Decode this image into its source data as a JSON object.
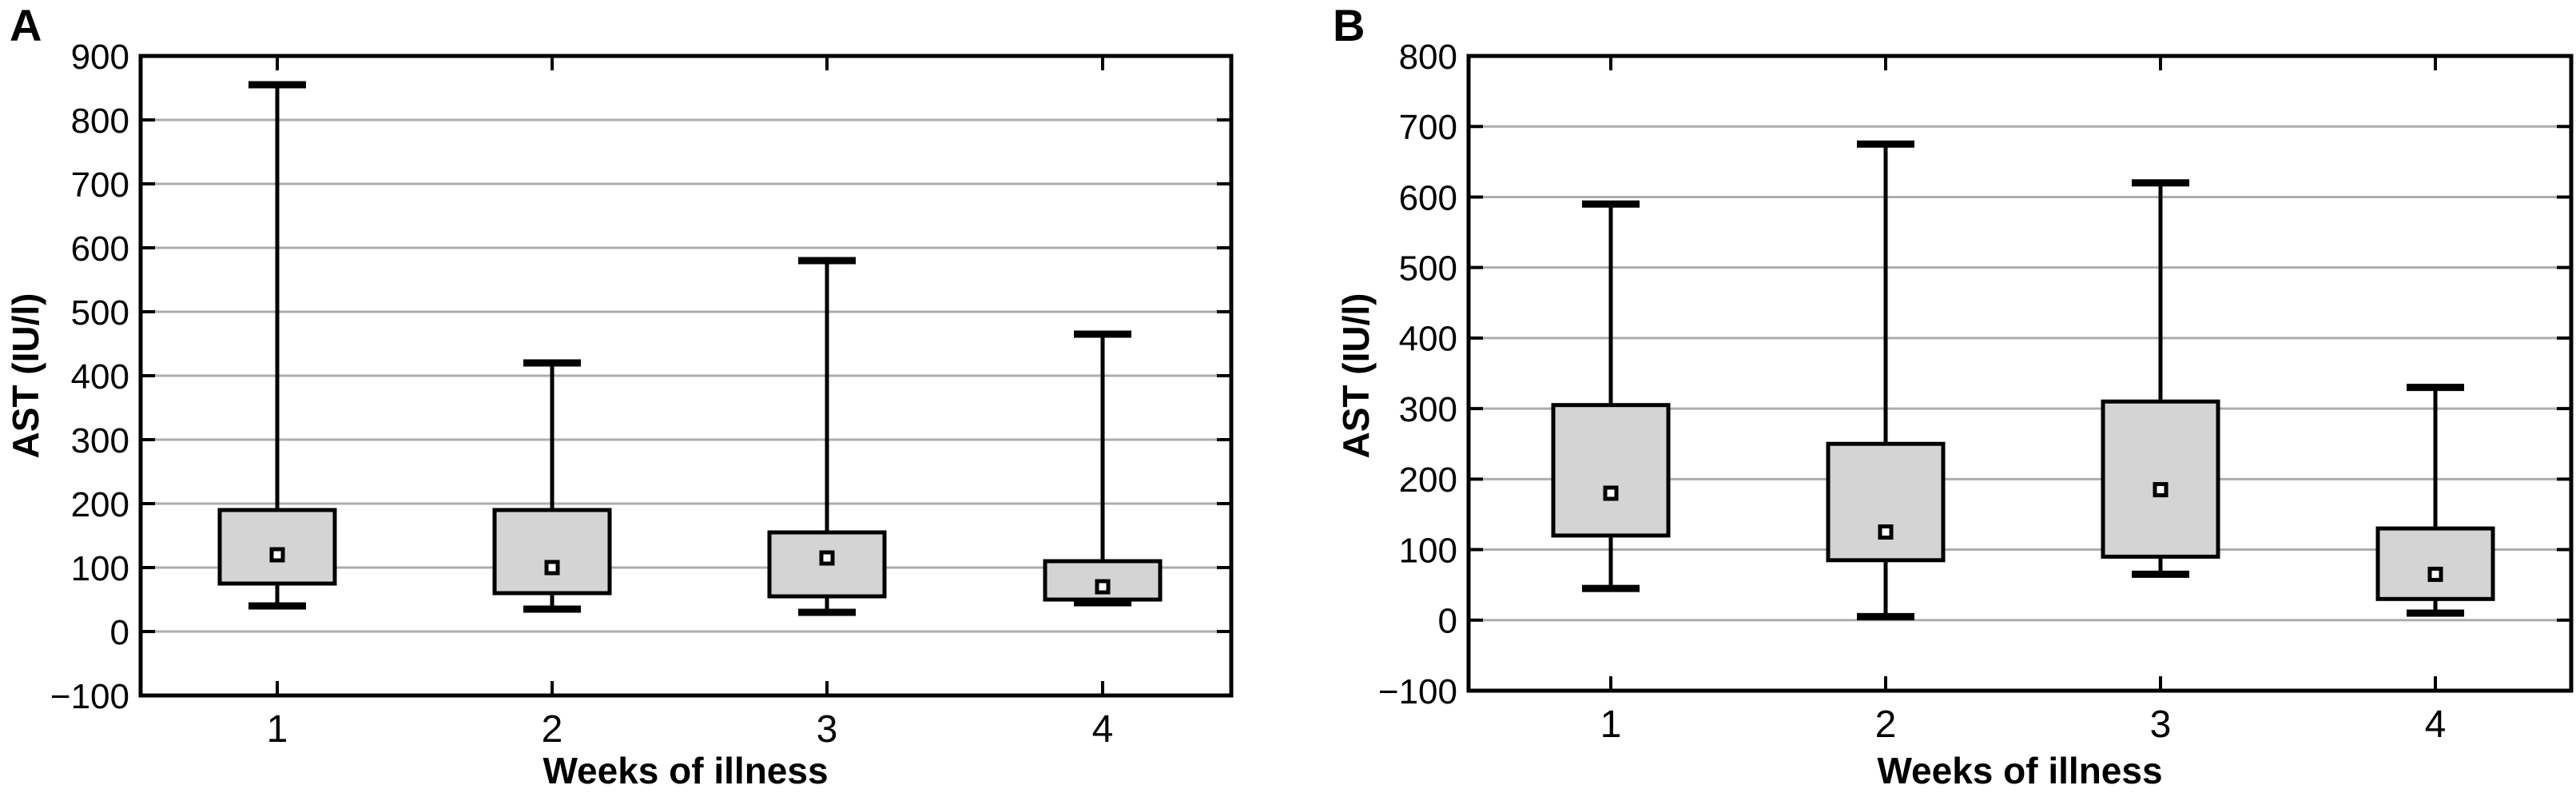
{
  "colors": {
    "background": "#ffffff",
    "box_fill": "#d4d4d4",
    "box_stroke": "#000000",
    "gridline": "#adadad",
    "marker_fill": "#ffffff",
    "text": "#000000"
  },
  "chart_data": [
    {
      "type": "box",
      "panel_label": "A",
      "ylabel": "AST (IU/l)",
      "xlabel": "Weeks of illness",
      "ylim": [
        -100,
        900
      ],
      "ytick_values": [
        900,
        800,
        700,
        600,
        500,
        400,
        300,
        200,
        100,
        0,
        -100
      ],
      "ytick_labels": [
        "900",
        "800",
        "700",
        "600",
        "500",
        "400",
        "300",
        "200",
        "100",
        "0",
        "−100"
      ],
      "categories": [
        "1",
        "2",
        "3",
        "4"
      ],
      "grid": true,
      "median_marker": "square",
      "boxes": [
        {
          "category": "1",
          "whisker_low": 40,
          "q1": 75,
          "median": 120,
          "q3": 190,
          "whisker_high": 855
        },
        {
          "category": "2",
          "whisker_low": 35,
          "q1": 60,
          "median": 100,
          "q3": 190,
          "whisker_high": 420
        },
        {
          "category": "3",
          "whisker_low": 30,
          "q1": 55,
          "median": 115,
          "q3": 155,
          "whisker_high": 580
        },
        {
          "category": "4",
          "whisker_low": 45,
          "q1": 50,
          "median": 70,
          "q3": 110,
          "whisker_high": 465
        }
      ]
    },
    {
      "type": "box",
      "panel_label": "B",
      "ylabel": "AST (IU/l)",
      "xlabel": "Weeks of illness",
      "ylim": [
        -100,
        800
      ],
      "ytick_values": [
        800,
        700,
        600,
        500,
        400,
        300,
        200,
        100,
        0,
        -100
      ],
      "ytick_labels": [
        "800",
        "700",
        "600",
        "500",
        "400",
        "300",
        "200",
        "100",
        "0",
        "−100"
      ],
      "categories": [
        "1",
        "2",
        "3",
        "4"
      ],
      "grid": true,
      "median_marker": "square",
      "boxes": [
        {
          "category": "1",
          "whisker_low": 45,
          "q1": 120,
          "median": 180,
          "q3": 305,
          "whisker_high": 590
        },
        {
          "category": "2",
          "whisker_low": 5,
          "q1": 85,
          "median": 125,
          "q3": 250,
          "whisker_high": 675
        },
        {
          "category": "3",
          "whisker_low": 65,
          "q1": 90,
          "median": 185,
          "q3": 310,
          "whisker_high": 620
        },
        {
          "category": "4",
          "whisker_low": 10,
          "q1": 30,
          "median": 65,
          "q3": 130,
          "whisker_high": 330
        }
      ]
    }
  ]
}
